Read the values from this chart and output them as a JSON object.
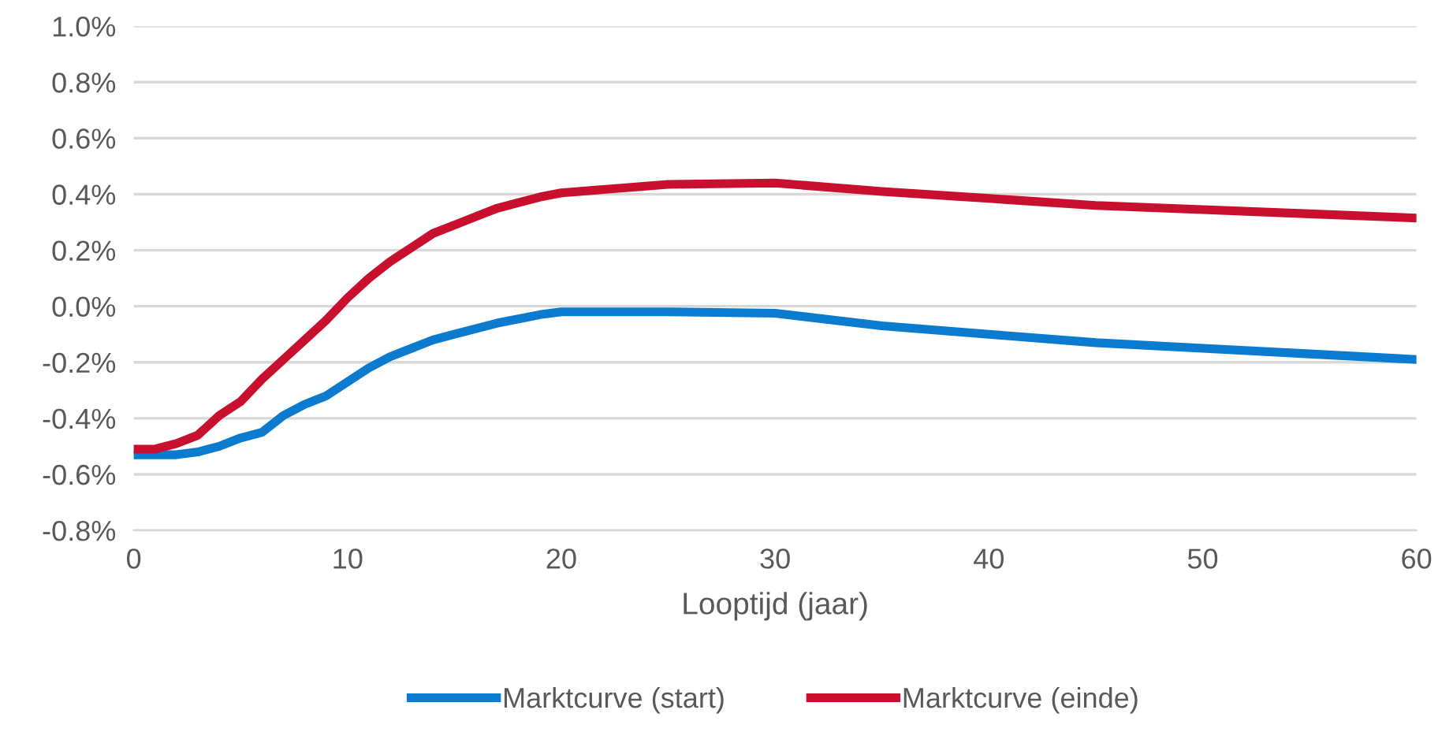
{
  "chart_data": {
    "type": "line",
    "xlabel": "Looptijd (jaar)",
    "x": [
      0,
      1,
      2,
      3,
      4,
      5,
      6,
      7,
      8,
      9,
      10,
      11,
      12,
      13,
      14,
      15,
      16,
      17,
      18,
      19,
      20,
      25,
      30,
      35,
      40,
      45,
      50,
      55,
      60
    ],
    "series": [
      {
        "name": "Marktcurve (start)",
        "color": "#0a7bcf",
        "values": [
          -0.53,
          -0.53,
          -0.53,
          -0.52,
          -0.5,
          -0.47,
          -0.45,
          -0.39,
          -0.35,
          -0.32,
          -0.27,
          -0.22,
          -0.18,
          -0.15,
          -0.12,
          -0.1,
          -0.08,
          -0.06,
          -0.045,
          -0.03,
          -0.02,
          -0.02,
          -0.025,
          -0.07,
          -0.1,
          -0.13,
          -0.15,
          -0.17,
          -0.19
        ]
      },
      {
        "name": "Marktcurve (einde)",
        "color": "#c8102e",
        "values": [
          -0.51,
          -0.51,
          -0.49,
          -0.46,
          -0.39,
          -0.34,
          -0.26,
          -0.19,
          -0.12,
          -0.05,
          0.03,
          0.1,
          0.16,
          0.21,
          0.26,
          0.29,
          0.32,
          0.35,
          0.37,
          0.39,
          0.405,
          0.435,
          0.44,
          0.41,
          0.385,
          0.36,
          0.345,
          0.33,
          0.315
        ]
      }
    ],
    "xlim": [
      0,
      60
    ],
    "xticks": [
      0,
      10,
      20,
      30,
      40,
      50,
      60
    ],
    "ylim": [
      -0.8,
      1.0
    ],
    "yticks": [
      {
        "value": -0.8,
        "label": "-0.8%"
      },
      {
        "value": -0.6,
        "label": "-0.6%"
      },
      {
        "value": -0.4,
        "label": "-0.4%"
      },
      {
        "value": -0.2,
        "label": "-0.2%"
      },
      {
        "value": 0.0,
        "label": "0.0%"
      },
      {
        "value": 0.2,
        "label": "0.2%"
      },
      {
        "value": 0.4,
        "label": "0.4%"
      },
      {
        "value": 0.6,
        "label": "0.6%"
      },
      {
        "value": 0.8,
        "label": "0.8%"
      },
      {
        "value": 1.0,
        "label": "1.0%"
      }
    ],
    "grid": "y",
    "legend": "bottom",
    "marker": "none",
    "line_style": "solid"
  }
}
